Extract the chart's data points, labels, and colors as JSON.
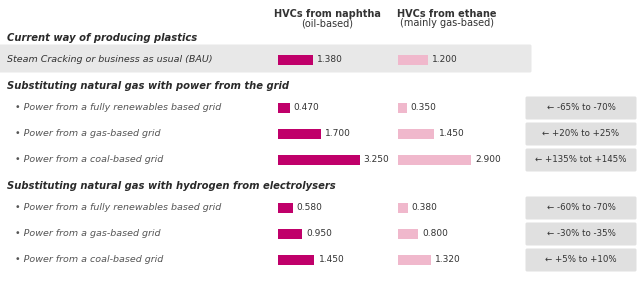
{
  "col1_header_line1": "HVCs from naphtha",
  "col1_header_line2": "(oil-based)",
  "col2_header_line1": "HVCs from ethane",
  "col2_header_line2": "(mainly gas-based)",
  "sections": [
    {
      "section_title": "Current way of producing plastics",
      "is_bold_section": true,
      "rows": [
        {
          "label": "Steam Cracking or business as usual (BAU)",
          "val1": 1.38,
          "val2": 1.2,
          "annotation": "",
          "highlight": true,
          "sub": false
        }
      ]
    },
    {
      "section_title": "Substituting natural gas with power from the grid",
      "is_bold_section": true,
      "rows": [
        {
          "label": "• Power from a fully renewables based grid",
          "val1": 0.47,
          "val2": 0.35,
          "annotation": "← -65% to -70%",
          "highlight": false,
          "sub": true
        },
        {
          "label": "• Power from a gas-based grid",
          "val1": 1.7,
          "val2": 1.45,
          "annotation": "← +20% to +25%",
          "highlight": false,
          "sub": true
        },
        {
          "label": "• Power from a coal-based grid",
          "val1": 3.25,
          "val2": 2.9,
          "annotation": "← +135% tot +145%",
          "highlight": false,
          "sub": true
        }
      ]
    },
    {
      "section_title": "Substituting natural gas with hydrogen from electrolysers",
      "is_bold_section": true,
      "rows": [
        {
          "label": "• Power from a fully renewables based grid",
          "val1": 0.58,
          "val2": 0.38,
          "annotation": "← -60% to -70%",
          "highlight": false,
          "sub": true
        },
        {
          "label": "• Power from a gas-based grid",
          "val1": 0.95,
          "val2": 0.8,
          "annotation": "← -30% to -35%",
          "highlight": false,
          "sub": true
        },
        {
          "label": "• Power from a coal-based grid",
          "val1": 1.45,
          "val2": 1.32,
          "annotation": "← +5% to +10%",
          "highlight": false,
          "sub": true
        }
      ]
    }
  ],
  "bar_color_dark": "#c0006a",
  "bar_color_light": "#f0b8cc",
  "highlight_bg": "#e8e8e8",
  "annotation_bg": "#e0e0e0",
  "max_val": 3.5,
  "background_color": "#ffffff",
  "text_dark": "#333333",
  "text_section": "#2a2a2a",
  "text_sub": "#555555"
}
